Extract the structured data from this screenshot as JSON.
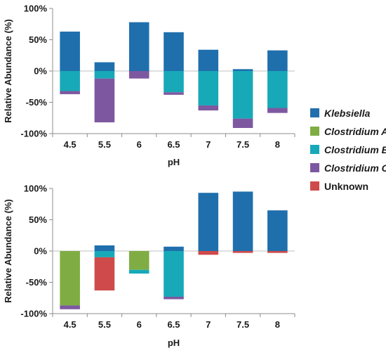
{
  "chart_data": [
    {
      "type": "bar",
      "stacked": true,
      "xlabel": "pH",
      "ylabel": "Relative Abundance (%)",
      "ylim": [
        -100,
        100
      ],
      "yticks": [
        "100%",
        "50%",
        "0%",
        "-50%",
        "-100%"
      ],
      "categories": [
        "4.5",
        "5.5",
        "6",
        "6.5",
        "7",
        "7.5",
        "8"
      ],
      "series": [
        {
          "name": "Klebsiella",
          "values": [
            63,
            14,
            78,
            62,
            34,
            3,
            33
          ]
        },
        {
          "name": "Clostridium A",
          "values": [
            0,
            0,
            0,
            0,
            0,
            0,
            0
          ]
        },
        {
          "name": "Clostridium B",
          "values": [
            -32,
            -12,
            0,
            -34,
            -55,
            -76,
            -59
          ]
        },
        {
          "name": "Clostridium C",
          "values": [
            -5,
            -70,
            -12,
            -4,
            -8,
            -15,
            -8
          ]
        },
        {
          "name": "Unknown",
          "values": [
            0,
            0,
            0,
            0,
            0,
            0,
            0
          ]
        }
      ]
    },
    {
      "type": "bar",
      "stacked": true,
      "xlabel": "pH",
      "ylabel": "Relative Abundance (%)",
      "ylim": [
        -100,
        100
      ],
      "yticks": [
        "100%",
        "50%",
        "0%",
        "-50%",
        "-100%"
      ],
      "categories": [
        "4.5",
        "5.5",
        "6",
        "6.5",
        "7",
        "7.5",
        "8"
      ],
      "series": [
        {
          "name": "Klebsiella",
          "values": [
            0,
            9,
            0,
            7,
            93,
            95,
            65
          ]
        },
        {
          "name": "Clostridium A",
          "values": [
            -87,
            0,
            -30,
            0,
            0,
            0,
            0
          ]
        },
        {
          "name": "Clostridium B",
          "values": [
            0,
            -10,
            -6,
            -73,
            0,
            0,
            0
          ]
        },
        {
          "name": "Clostridium C",
          "values": [
            -6,
            0,
            0,
            -4,
            0,
            0,
            0
          ]
        },
        {
          "name": "Unknown",
          "values": [
            0,
            -53,
            0,
            0,
            -6,
            -3,
            -3
          ]
        }
      ]
    }
  ],
  "legend": {
    "position": "right",
    "items": [
      {
        "label": "Klebsiella",
        "italic": true,
        "color": "#1f6fad"
      },
      {
        "label": "Clostridium A",
        "italic": true,
        "color": "#7fad44"
      },
      {
        "label": "Clostridium B",
        "italic": true,
        "color": "#17a9b8"
      },
      {
        "label": "Clostridium C",
        "italic": true,
        "color": "#7d58a0"
      },
      {
        "label": "Unknown",
        "italic": false,
        "color": "#cf4a4a"
      }
    ]
  }
}
